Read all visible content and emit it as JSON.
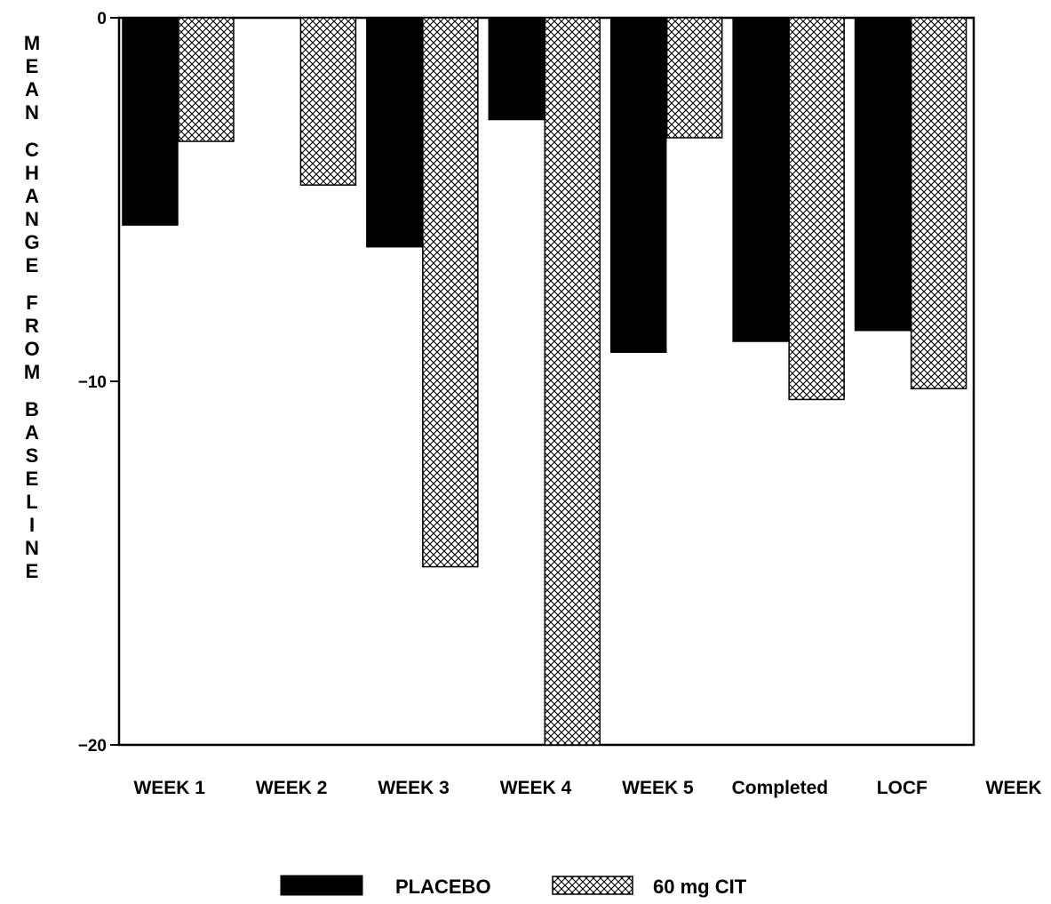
{
  "chart_data": {
    "type": "bar",
    "title": "",
    "xlabel": "WEEK",
    "ylabel": "MEAN CHANGE FROM BASELINE",
    "ylim": [
      -20,
      0
    ],
    "yticks": [
      0,
      -10,
      -20
    ],
    "ytick_labels": [
      "0",
      "−10",
      "−20"
    ],
    "categories": [
      "WEEK 1",
      "WEEK 2",
      "WEEK 3",
      "WEEK 4",
      "WEEK 5",
      "Completed",
      "LOCF"
    ],
    "series": [
      {
        "name": "PLACEBO",
        "values": [
          -5.7,
          null,
          -6.3,
          -2.8,
          -9.2,
          -8.9,
          -8.6
        ],
        "fill": "solid",
        "color": "#000000"
      },
      {
        "name": "60 mg CIT",
        "values": [
          -3.4,
          -4.6,
          -15.1,
          -20.0,
          -3.3,
          -10.5,
          -10.2
        ],
        "fill": "crosshatch",
        "color": "#000000"
      }
    ],
    "grid": false,
    "legend_position": "bottom-center"
  }
}
